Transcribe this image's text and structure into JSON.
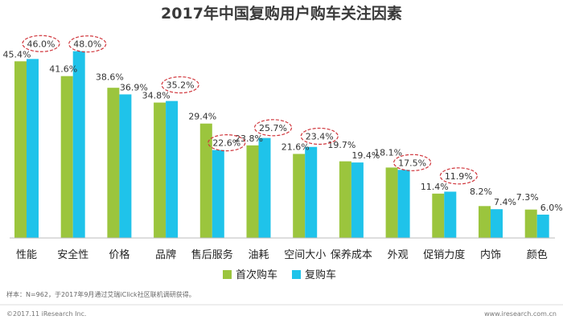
{
  "chart_data": {
    "type": "bar",
    "title": "2017年中国复购用户购车关注因素",
    "categories": [
      "性能",
      "安全性",
      "价格",
      "品牌",
      "售后服务",
      "油耗",
      "空间大小",
      "保养成本",
      "外观",
      "促销力度",
      "内饰",
      "颜色"
    ],
    "series": [
      {
        "name": "首次购车",
        "values": [
          45.4,
          41.6,
          38.6,
          34.8,
          29.4,
          23.8,
          21.6,
          19.7,
          18.1,
          11.4,
          8.2,
          7.3
        ],
        "labels": [
          "45.4%",
          "41.6%",
          "38.6%",
          "34.8%",
          "29.4%",
          "23.8%",
          "21.6%",
          "19.7%",
          "18.1%",
          "11.4%",
          "8.2%",
          "7.3%"
        ]
      },
      {
        "name": "复购车",
        "values": [
          46.0,
          48.0,
          36.9,
          35.2,
          22.6,
          25.7,
          23.4,
          19.4,
          17.5,
          11.9,
          7.4,
          6.0
        ],
        "labels": [
          "46.0%",
          "48.0%",
          "36.9%",
          "35.2%",
          "22.6%",
          "25.7%",
          "23.4%",
          "19.4%",
          "17.5%",
          "11.9%",
          "7.4%",
          "6.0%"
        ]
      }
    ],
    "ylim": [
      0,
      50
    ],
    "grid": false,
    "legend": "bottom-center",
    "highlighted_categories": [
      "性能",
      "安全性",
      "品牌",
      "售后服务",
      "油耗",
      "空间大小",
      "外观",
      "促销力度"
    ]
  },
  "colors": {
    "series1": "#9bc53d",
    "series2": "#1fc3ea",
    "highlight": "#d0353b",
    "baseline": "#bbbbbb"
  },
  "note": "样本：N=962，于2017年9月通过艾瑞iClick社区联机调研获得。",
  "footer_left": "©2017.11 iResearch Inc.",
  "footer_right": "www.iresearch.com.cn"
}
